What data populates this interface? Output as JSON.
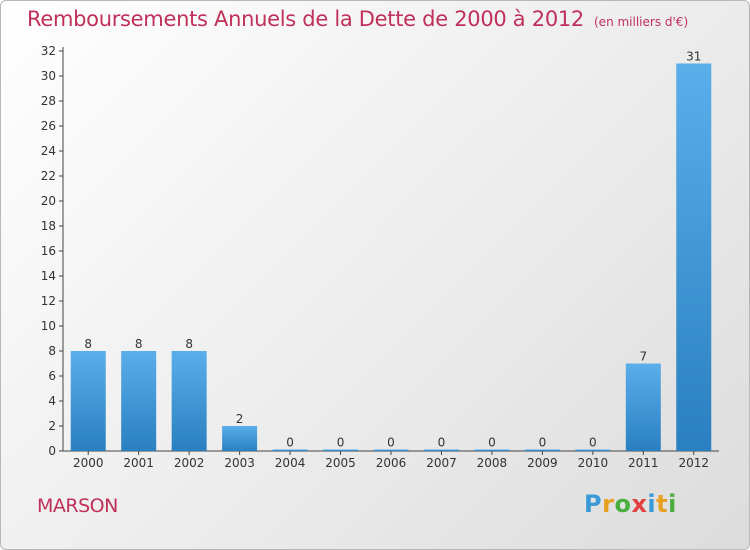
{
  "header": {
    "title": "Remboursements Annuels de la Dette de 2000 à 2012",
    "subtitle": "(en milliers d'€)"
  },
  "footer": {
    "commune": "MARSON",
    "logo": [
      "P",
      "r",
      "o",
      "x",
      "i",
      "t",
      "i"
    ]
  },
  "colors": {
    "title": "#c0305a",
    "bar_light": "#5aaeea",
    "bar_dark": "#2a7fc0",
    "logo": [
      "#3a9ad8",
      "#e8a020",
      "#4aae3c",
      "#e04040",
      "#3a9ad8",
      "#e8a020",
      "#4aae3c"
    ]
  },
  "chart_data": {
    "type": "bar",
    "title": "Remboursements Annuels de la Dette de 2000 à 2012",
    "subtitle": "(en milliers d'€)",
    "categories": [
      "2000",
      "2001",
      "2002",
      "2003",
      "2004",
      "2005",
      "2006",
      "2007",
      "2008",
      "2009",
      "2010",
      "2011",
      "2012"
    ],
    "values": [
      8,
      8,
      8,
      2,
      0,
      0,
      0,
      0,
      0,
      0,
      0,
      7,
      31
    ],
    "data_labels": [
      "8",
      "8",
      "8",
      "2",
      "0",
      "0",
      "0",
      "0",
      "0",
      "0",
      "0",
      "7",
      "31"
    ],
    "ylim": [
      0,
      32
    ],
    "yticks": [
      0,
      2,
      4,
      6,
      8,
      10,
      12,
      14,
      16,
      18,
      20,
      22,
      24,
      26,
      28,
      30,
      32
    ],
    "grid": false,
    "xlabel": "",
    "ylabel": ""
  }
}
